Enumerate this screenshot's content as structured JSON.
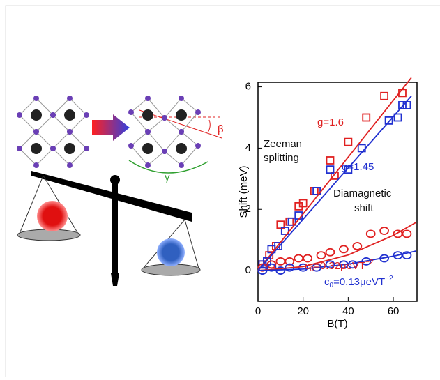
{
  "chart_data": {
    "type": "scatter",
    "x_label": "B(T)",
    "y_label": "Shift (meV)",
    "xlim": [
      0,
      70.5
    ],
    "ylim": [
      -1.0,
      6.15
    ],
    "xticks": [
      0,
      20,
      40,
      60
    ],
    "yticks": [
      0,
      2,
      4,
      6
    ],
    "series": [
      {
        "color": "#e02020",
        "marker": "square",
        "x": [
          2,
          5,
          8,
          10,
          14,
          18,
          20,
          25,
          32,
          34,
          40,
          48,
          56,
          64
        ],
        "values": [
          0.2,
          0.5,
          0.8,
          1.5,
          1.6,
          2.1,
          2.2,
          2.6,
          3.6,
          3.1,
          4.2,
          5.0,
          5.7,
          5.8
        ]
      },
      {
        "color": "#2030d0",
        "marker": "square",
        "x": [
          2,
          4,
          6,
          9,
          12,
          15,
          18,
          26,
          32,
          40,
          46,
          58,
          62,
          64,
          66
        ],
        "values": [
          0.2,
          0.3,
          0.7,
          0.8,
          1.3,
          1.6,
          1.8,
          2.6,
          3.3,
          3.3,
          4.0,
          4.9,
          5.0,
          5.4,
          5.4
        ]
      },
      {
        "color": "#e02020",
        "marker": "circle",
        "x": [
          2,
          6,
          10,
          14,
          18,
          22,
          28,
          32,
          38,
          44,
          50,
          56,
          62,
          66
        ],
        "values": [
          0.1,
          0.2,
          0.3,
          0.3,
          0.4,
          0.4,
          0.5,
          0.6,
          0.7,
          0.8,
          1.2,
          1.3,
          1.2,
          1.2
        ]
      },
      {
        "color": "#2030d0",
        "marker": "circle",
        "x": [
          2,
          6,
          10,
          14,
          20,
          26,
          32,
          38,
          42,
          48,
          56,
          62,
          66
        ],
        "values": [
          0.0,
          0.1,
          0.0,
          0.1,
          0.1,
          0.1,
          0.2,
          0.2,
          0.2,
          0.3,
          0.4,
          0.5,
          0.5
        ]
      },
      {
        "color": "#e02020",
        "marker": "line",
        "x": [
          0,
          68
        ],
        "values": [
          0,
          6.3
        ]
      },
      {
        "color": "#2030d0",
        "marker": "line",
        "x": [
          0,
          68
        ],
        "values": [
          0,
          5.7
        ]
      },
      {
        "color": "#e02020",
        "marker": "line",
        "x": [
          0,
          20,
          40,
          60,
          70
        ],
        "values": [
          0,
          0.13,
          0.51,
          1.15,
          1.57
        ]
      },
      {
        "color": "#2030d0",
        "marker": "line",
        "x": [
          0,
          20,
          40,
          60,
          70
        ],
        "values": [
          0,
          0.05,
          0.21,
          0.47,
          0.64
        ]
      }
    ],
    "annotations": [
      {
        "text": "Zeeman",
        "color": "#111111"
      },
      {
        "text": "splitting",
        "color": "#111111"
      },
      {
        "text": "g=1.6",
        "color": "#e02020"
      },
      {
        "text": "g=1.45",
        "color": "#2030d0"
      },
      {
        "text": "Diamagnetic",
        "color": "#111111"
      },
      {
        "text": "shift",
        "color": "#111111"
      },
      {
        "parts": [
          "c",
          "0",
          "=0.32μeVT",
          "−2"
        ],
        "color": "#e02020"
      },
      {
        "parts": [
          "c",
          "0",
          "=0.13μeVT",
          "−2"
        ],
        "color": "#2030d0"
      }
    ]
  },
  "illustration": {
    "labels": [
      "β",
      "γ"
    ]
  }
}
